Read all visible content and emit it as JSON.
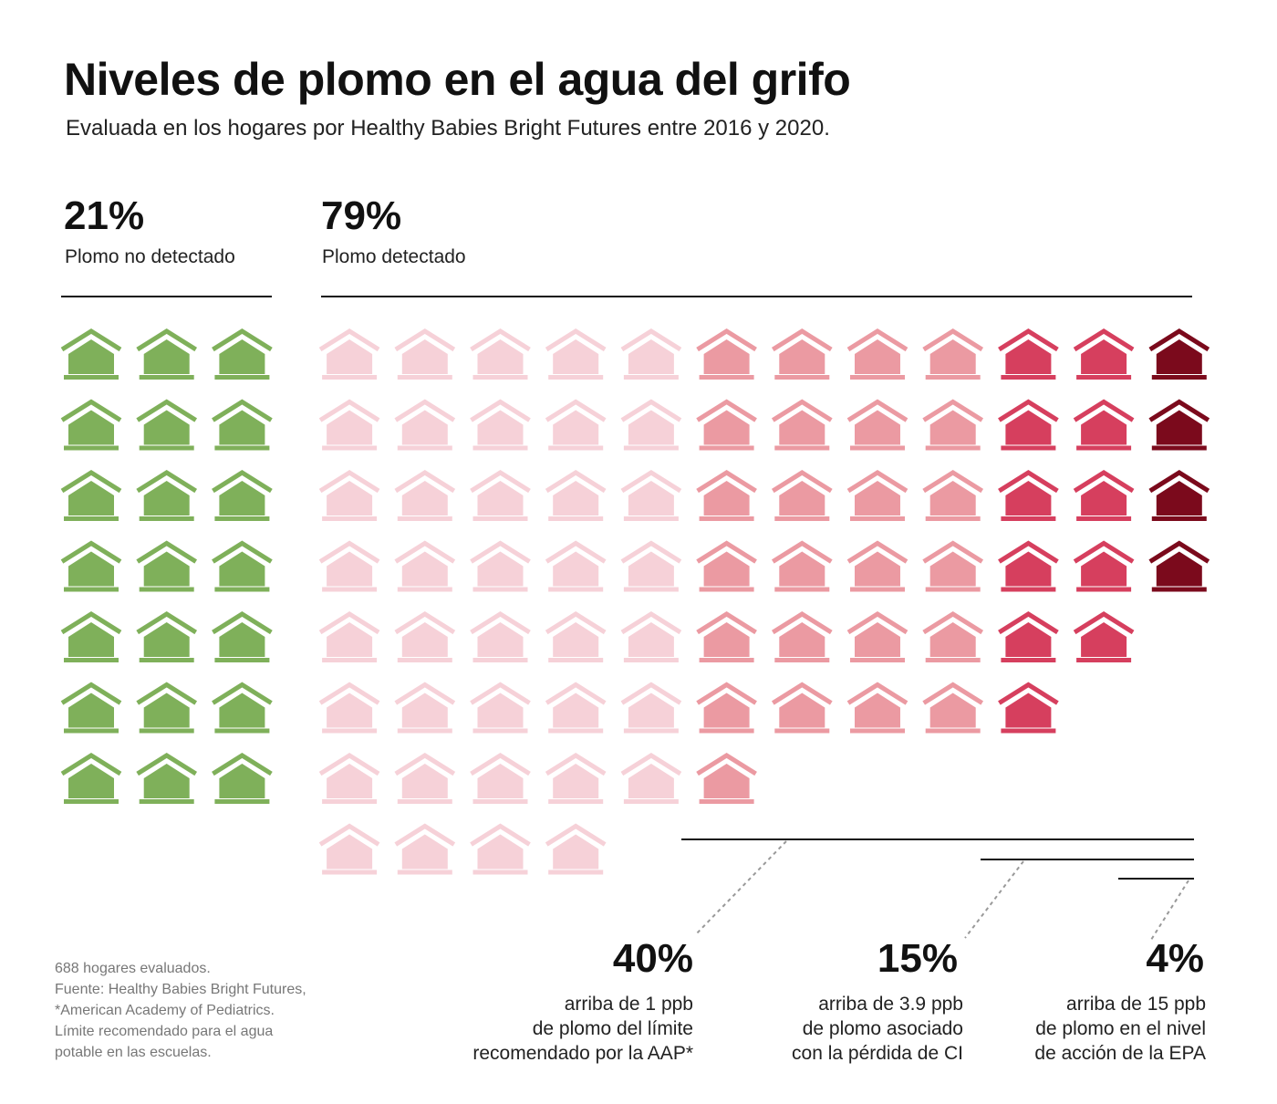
{
  "header": {
    "title": "Niveles de plomo en el agua del grifo",
    "subtitle": "Evaluada en los hogares por Healthy Babies Bright Futures entre 2016 y 2020."
  },
  "summary": {
    "not_detected": {
      "pct": "21%",
      "label": "Plomo no detectado"
    },
    "detected": {
      "pct": "79%",
      "label": "Plomo detectado"
    }
  },
  "callouts": [
    {
      "pct": "40%",
      "lines": [
        "arriba de 1 ppb",
        "de plomo del límite",
        "recomendado por la AAP*"
      ]
    },
    {
      "pct": "15%",
      "lines": [
        "arriba de 3.9 ppb",
        "de plomo asociado",
        "con la pérdida de CI"
      ]
    },
    {
      "pct": "4%",
      "lines": [
        "arriba de 15 ppb",
        "de plomo en el nivel",
        "de acción de la EPA"
      ]
    }
  ],
  "footnote": {
    "lines": [
      "688 hogares evaluados.",
      "Fuente: Healthy Babies Bright Futures,",
      "*American Academy of Pediatrics.",
      "Límite recomendado para el agua",
      "potable en las escuelas."
    ]
  },
  "chart_data": {
    "type": "waffle",
    "unit": "house",
    "total_households": 688,
    "categories": [
      {
        "key": "not_detected",
        "color": "#7fb05a",
        "columns": [
          7,
          7,
          7
        ]
      },
      {
        "key": "detected_below_1ppb",
        "color": "#f6d1d8",
        "columns": [
          8,
          8,
          8,
          8,
          7
        ]
      },
      {
        "key": "above_1ppb",
        "color": "#eb9aa2",
        "columns": [
          7,
          6,
          6,
          6
        ]
      },
      {
        "key": "above_3_9ppb",
        "color": "#d63f5e",
        "columns": [
          6,
          5
        ]
      },
      {
        "key": "above_15ppb",
        "color": "#7b0a1c",
        "columns": [
          4
        ]
      }
    ],
    "percentages": {
      "not_detected": 21,
      "detected": 79,
      "above_1ppb": 40,
      "above_3_9ppb": 15,
      "above_15ppb": 4
    }
  }
}
